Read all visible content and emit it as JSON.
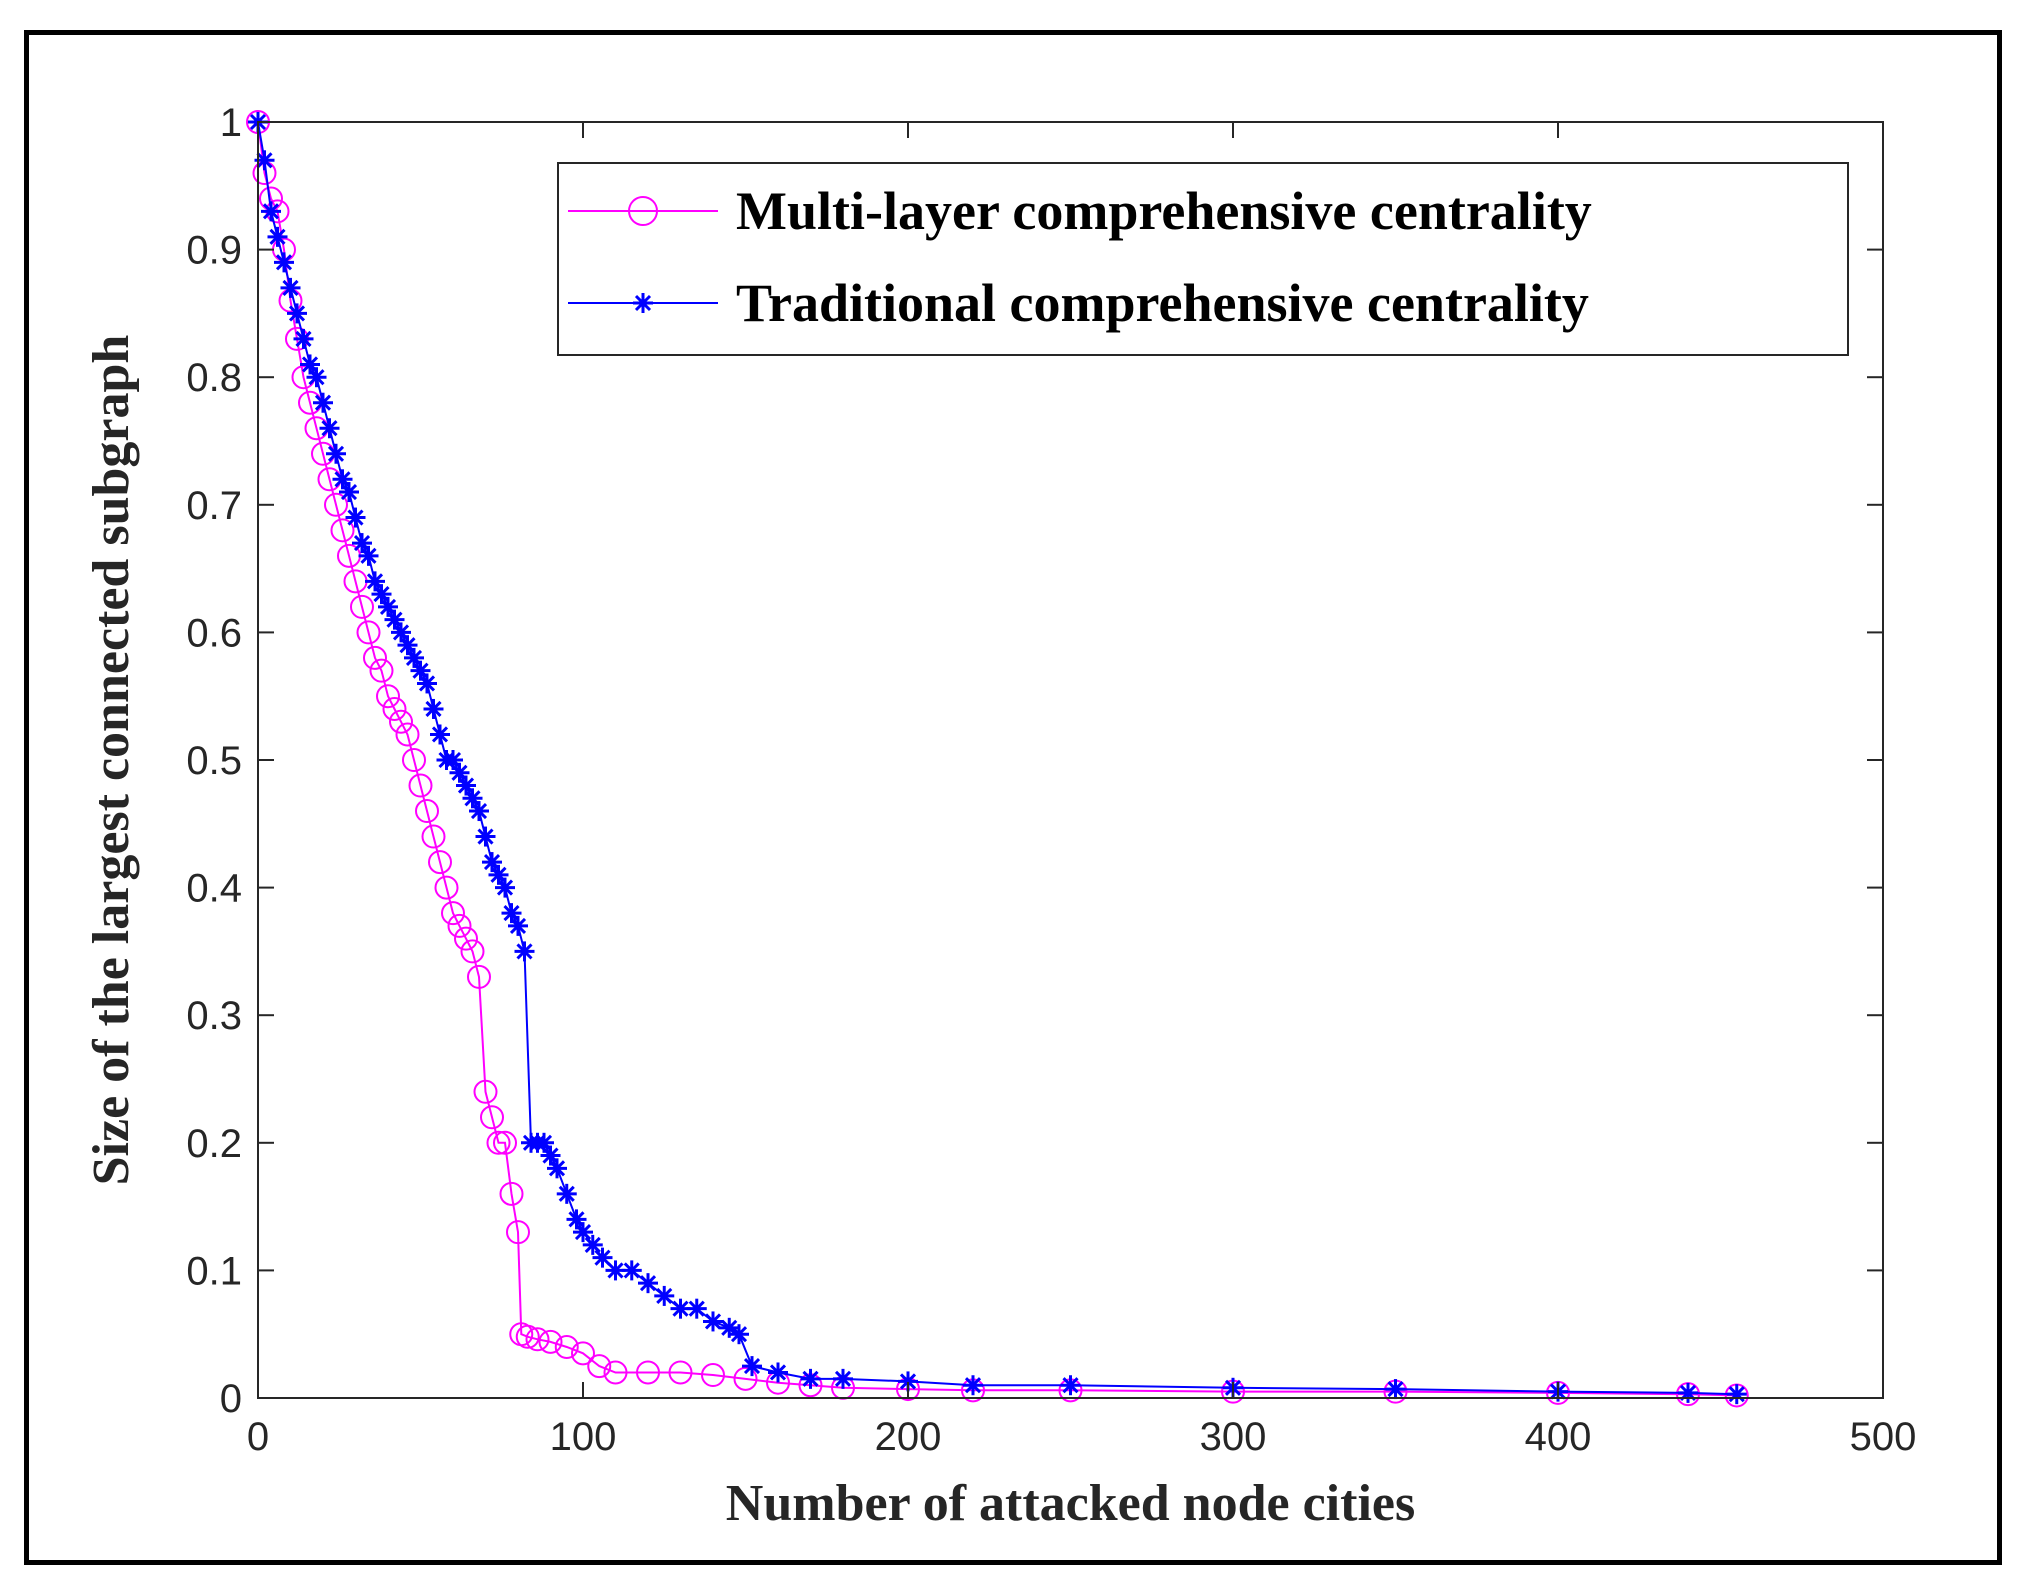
{
  "chart_data": {
    "type": "line",
    "xlabel": "Number of attacked node cities",
    "ylabel": "Size of the largest connected subgraph",
    "xlim": [
      0,
      500
    ],
    "ylim": [
      0,
      1
    ],
    "xticks": [
      0,
      100,
      200,
      300,
      400,
      500
    ],
    "yticks": [
      0,
      0.1,
      0.2,
      0.3,
      0.4,
      0.5,
      0.6,
      0.7,
      0.8,
      0.9,
      1
    ],
    "xtick_labels": [
      "0",
      "100",
      "200",
      "300",
      "400",
      "500"
    ],
    "ytick_labels": [
      "0",
      "0.1",
      "0.2",
      "0.3",
      "0.4",
      "0.5",
      "0.6",
      "0.7",
      "0.8",
      "0.9",
      "1"
    ],
    "grid": false,
    "legend_position": "top-right",
    "series": [
      {
        "name": "Multi-layer comprehensive centrality",
        "color": "#ff00ff",
        "marker": "circle",
        "x": [
          0,
          2,
          4,
          6,
          8,
          10,
          12,
          14,
          16,
          18,
          20,
          22,
          24,
          26,
          28,
          30,
          32,
          34,
          36,
          38,
          40,
          42,
          44,
          46,
          48,
          50,
          52,
          54,
          56,
          58,
          60,
          62,
          64,
          66,
          68,
          70,
          72,
          74,
          76,
          78,
          80,
          81,
          83,
          86,
          90,
          95,
          100,
          105,
          110,
          120,
          130,
          140,
          150,
          160,
          170,
          180,
          200,
          220,
          250,
          300,
          350,
          400,
          440,
          455
        ],
        "y": [
          1.0,
          0.96,
          0.94,
          0.93,
          0.9,
          0.86,
          0.83,
          0.8,
          0.78,
          0.76,
          0.74,
          0.72,
          0.7,
          0.68,
          0.66,
          0.64,
          0.62,
          0.6,
          0.58,
          0.57,
          0.55,
          0.54,
          0.53,
          0.52,
          0.5,
          0.48,
          0.46,
          0.44,
          0.42,
          0.4,
          0.38,
          0.37,
          0.36,
          0.35,
          0.33,
          0.24,
          0.22,
          0.2,
          0.2,
          0.16,
          0.13,
          0.05,
          0.048,
          0.046,
          0.044,
          0.04,
          0.035,
          0.025,
          0.02,
          0.02,
          0.02,
          0.018,
          0.015,
          0.012,
          0.01,
          0.008,
          0.007,
          0.006,
          0.006,
          0.005,
          0.005,
          0.004,
          0.003,
          0.002
        ]
      },
      {
        "name": "Traditional comprehensive centrality",
        "color": "#0000ff",
        "marker": "asterisk",
        "x": [
          0,
          2,
          4,
          6,
          8,
          10,
          12,
          14,
          16,
          18,
          20,
          22,
          24,
          26,
          28,
          30,
          32,
          34,
          36,
          38,
          40,
          42,
          44,
          46,
          48,
          50,
          52,
          54,
          56,
          58,
          60,
          62,
          64,
          66,
          68,
          70,
          72,
          74,
          76,
          78,
          80,
          82,
          84,
          86,
          88,
          90,
          92,
          95,
          98,
          100,
          103,
          106,
          110,
          115,
          120,
          125,
          130,
          135,
          140,
          145,
          148,
          152,
          160,
          170,
          180,
          200,
          220,
          250,
          300,
          350,
          400,
          440,
          455
        ],
        "y": [
          1.0,
          0.97,
          0.93,
          0.91,
          0.89,
          0.87,
          0.85,
          0.83,
          0.81,
          0.8,
          0.78,
          0.76,
          0.74,
          0.72,
          0.71,
          0.69,
          0.67,
          0.66,
          0.64,
          0.63,
          0.62,
          0.61,
          0.6,
          0.59,
          0.58,
          0.57,
          0.56,
          0.54,
          0.52,
          0.5,
          0.5,
          0.49,
          0.48,
          0.47,
          0.46,
          0.44,
          0.42,
          0.41,
          0.4,
          0.38,
          0.37,
          0.35,
          0.2,
          0.2,
          0.2,
          0.19,
          0.18,
          0.16,
          0.14,
          0.13,
          0.12,
          0.11,
          0.1,
          0.1,
          0.09,
          0.08,
          0.07,
          0.07,
          0.06,
          0.055,
          0.05,
          0.025,
          0.02,
          0.015,
          0.015,
          0.013,
          0.01,
          0.01,
          0.008,
          0.007,
          0.005,
          0.004,
          0.003
        ]
      }
    ]
  }
}
